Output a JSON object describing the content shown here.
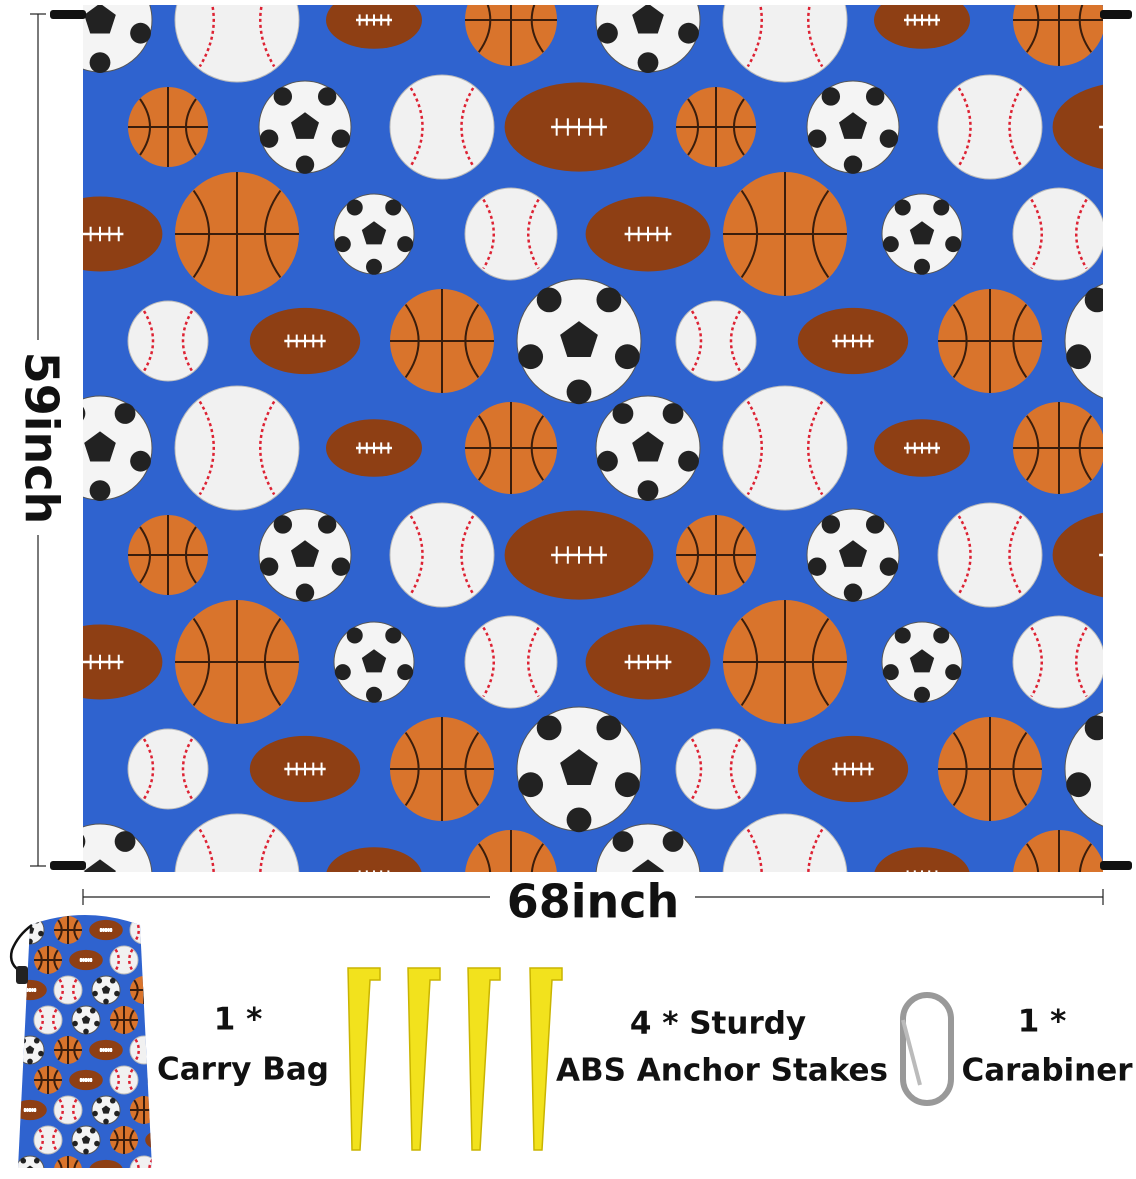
{
  "dimensions": {
    "height": "59inch",
    "width": "68inch"
  },
  "accessories": [
    {
      "count": "1 *",
      "name": "Carry Bag"
    },
    {
      "count": "4 * Sturdy",
      "name": "ABS Anchor Stakes"
    },
    {
      "count": "1 *",
      "name": "Carabiner"
    }
  ]
}
